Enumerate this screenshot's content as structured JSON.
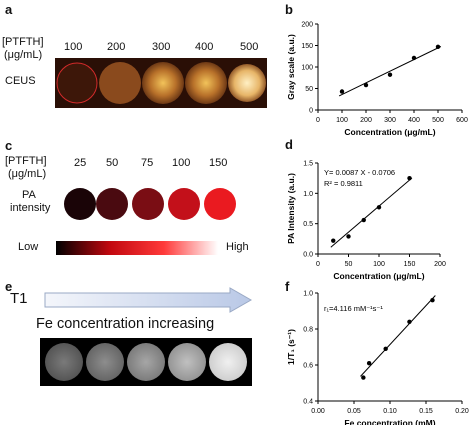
{
  "panels": {
    "a": {
      "letter": "a",
      "unit_line1": "[PTFTH]",
      "unit_line2": "(μg/mL)",
      "concentrations": [
        "100",
        "200",
        "300",
        "400",
        "500"
      ],
      "row_label": "CEUS"
    },
    "c": {
      "letter": "c",
      "unit_line1": "[PTFTH]",
      "unit_line2": "(μg/mL)",
      "concentrations": [
        "25",
        "50",
        "75",
        "100",
        "150"
      ],
      "row_label_line1": "PA",
      "row_label_line2": "intensity",
      "colorbar_low": "Low",
      "colorbar_high": "High"
    },
    "e": {
      "letter": "e",
      "row_label": "T1",
      "arrow_text": "Fe concentration increasing"
    }
  },
  "chart_data": [
    {
      "panel": "b",
      "type": "scatter",
      "fit": "linear",
      "x": [
        100,
        200,
        300,
        400,
        500
      ],
      "y": [
        43,
        58,
        82,
        121,
        147
      ],
      "xlabel": "Concentration (μg/mL)",
      "ylabel": "Gray scale (a.u.)",
      "xlim": [
        0,
        600
      ],
      "ylim": [
        0,
        200
      ],
      "xticks": [
        "0",
        "100",
        "200",
        "300",
        "400",
        "500",
        "600"
      ],
      "yticks": [
        "0",
        "50",
        "100",
        "150",
        "200"
      ],
      "annotations": []
    },
    {
      "panel": "d",
      "type": "scatter",
      "fit": "linear",
      "x": [
        25,
        50,
        75,
        100,
        150
      ],
      "y": [
        0.22,
        0.29,
        0.56,
        0.77,
        1.25
      ],
      "xlabel": "Concentration (μg/mL)",
      "ylabel": "PA Intensity (a.u.)",
      "xlim": [
        0,
        200
      ],
      "ylim": [
        0.0,
        1.5
      ],
      "xticks": [
        "0",
        "50",
        "100",
        "150",
        "200"
      ],
      "yticks": [
        "0.0",
        "0.5",
        "1.0",
        "1.5"
      ],
      "annotations": [
        "Y= 0.0087 X - 0.0706",
        "R² = 0.9811"
      ]
    },
    {
      "panel": "f",
      "type": "scatter",
      "fit": "linear",
      "x": [
        0.063,
        0.071,
        0.094,
        0.127,
        0.159
      ],
      "y": [
        0.53,
        0.61,
        0.69,
        0.84,
        0.96
      ],
      "xlabel": "Fe concentration (mM)",
      "ylabel": "1/T₁ (s⁻¹)",
      "xlim": [
        0.0,
        0.2
      ],
      "ylim": [
        0.4,
        1.0
      ],
      "xticks": [
        "0.00",
        "0.05",
        "0.10",
        "0.15",
        "0.20"
      ],
      "yticks": [
        "0.4",
        "0.6",
        "0.8",
        "1.0"
      ],
      "annotations": [
        "r₁=4.116 mM⁻¹s⁻¹"
      ]
    }
  ]
}
